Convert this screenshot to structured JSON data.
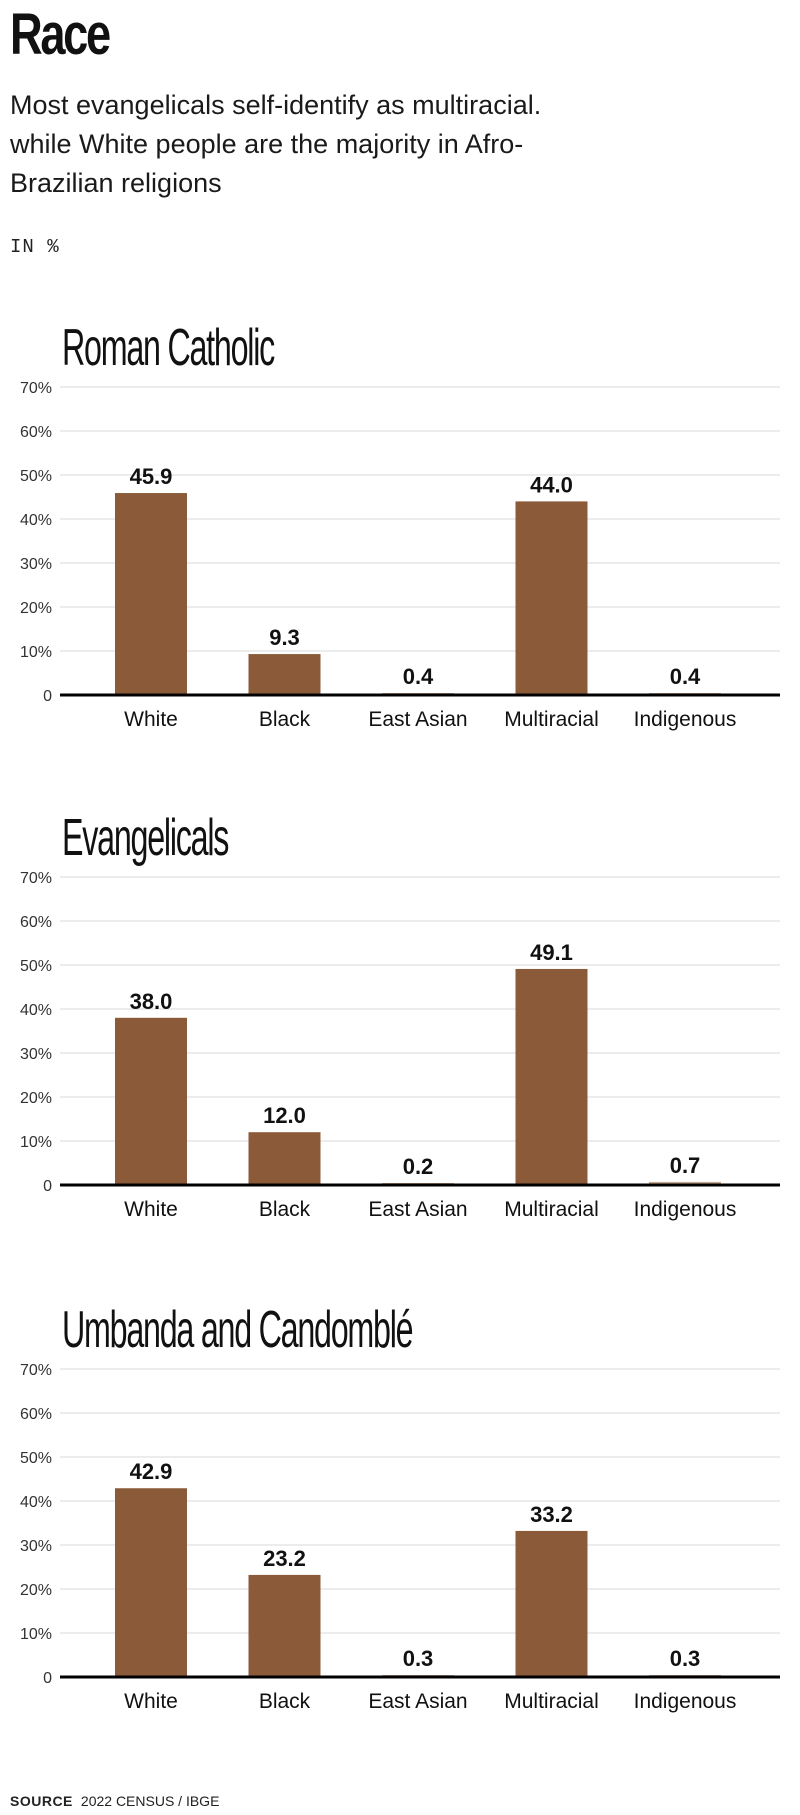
{
  "page": {
    "title": "Race",
    "subtitle": "Most evangelicals self-identify as multiracial. while White people are the majority in Afro-Brazilian religions",
    "unit": "IN %",
    "source_label": "SOURCE",
    "source_text": "2022 CENSUS / IBGE"
  },
  "colors": {
    "bar": "#8B5A38",
    "small_bar": "#C9A98E",
    "grid": "#d9d9d9",
    "axis": "#000000"
  },
  "chart_data": [
    {
      "type": "bar",
      "title": "Roman Catholic",
      "categories": [
        "White",
        "Black",
        "East Asian",
        "Multiracial",
        "Indigenous"
      ],
      "values": [
        45.9,
        9.3,
        0.4,
        44.0,
        0.4
      ],
      "value_labels": [
        "45.9",
        "9.3",
        "0.4",
        "44.0",
        "0.4"
      ],
      "y_ticks": [
        "0",
        "10%",
        "20%",
        "30%",
        "40%",
        "50%",
        "60%",
        "70%"
      ],
      "ylim": [
        0,
        70
      ],
      "grid": true
    },
    {
      "type": "bar",
      "title": "Evangelicals",
      "categories": [
        "White",
        "Black",
        "East Asian",
        "Multiracial",
        "Indigenous"
      ],
      "values": [
        38.0,
        12.0,
        0.2,
        49.1,
        0.7
      ],
      "value_labels": [
        "38.0",
        "12.0",
        "0.2",
        "49.1",
        "0.7"
      ],
      "y_ticks": [
        "0",
        "10%",
        "20%",
        "30%",
        "40%",
        "50%",
        "60%",
        "70%"
      ],
      "ylim": [
        0,
        70
      ],
      "grid": true
    },
    {
      "type": "bar",
      "title": "Umbanda and Candomblé",
      "categories": [
        "White",
        "Black",
        "East Asian",
        "Multiracial",
        "Indigenous"
      ],
      "values": [
        42.9,
        23.2,
        0.3,
        33.2,
        0.3
      ],
      "value_labels": [
        "42.9",
        "23.2",
        "0.3",
        "33.2",
        "0.3"
      ],
      "y_ticks": [
        "0",
        "10%",
        "20%",
        "30%",
        "40%",
        "50%",
        "60%",
        "70%"
      ],
      "ylim": [
        0,
        70
      ],
      "grid": true
    }
  ]
}
